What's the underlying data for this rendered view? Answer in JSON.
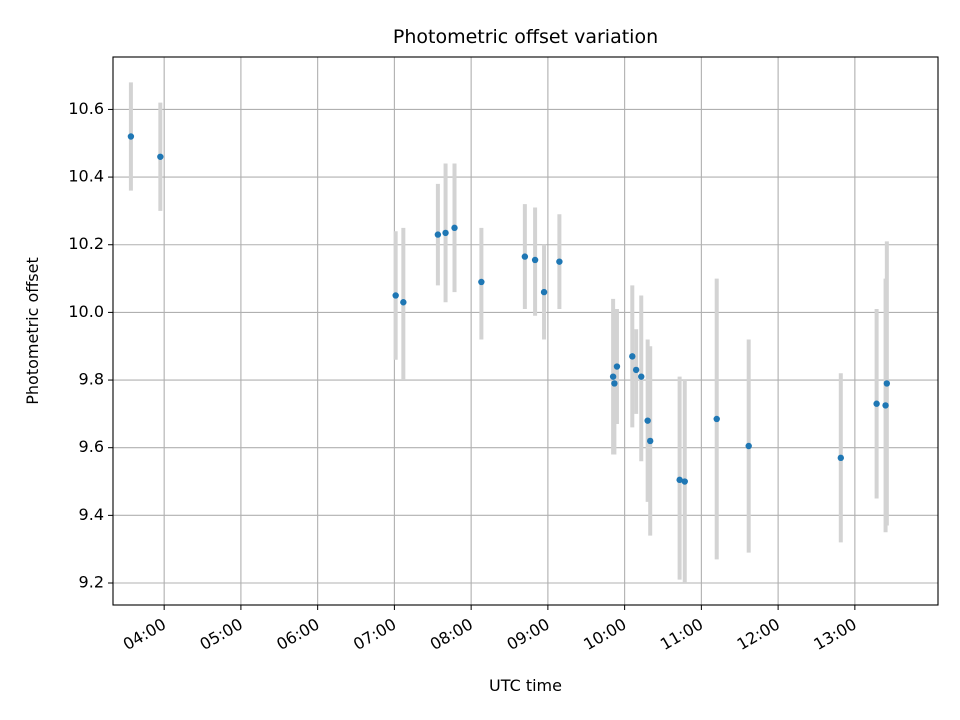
{
  "chart_data": {
    "type": "scatter",
    "title": "Photometric offset variation",
    "xlabel": "UTC time",
    "ylabel": "Photometric offset",
    "xlim": [
      "03:20",
      "14:05"
    ],
    "ylim": [
      9.135,
      10.755
    ],
    "x_ticks": [
      "04:00",
      "05:00",
      "06:00",
      "07:00",
      "08:00",
      "09:00",
      "10:00",
      "11:00",
      "12:00",
      "13:00"
    ],
    "y_ticks": [
      "9.2",
      "9.4",
      "9.6",
      "9.8",
      "10.0",
      "10.2",
      "10.4",
      "10.6"
    ],
    "grid": true,
    "point_color": "#1f77b4",
    "errorbar_color": "#d3d3d3",
    "points": [
      {
        "time": "03:34",
        "y": 10.52,
        "ylo": 10.36,
        "yhi": 10.68
      },
      {
        "time": "03:57",
        "y": 10.46,
        "ylo": 10.3,
        "yhi": 10.62
      },
      {
        "time": "07:01",
        "y": 10.05,
        "ylo": 9.86,
        "yhi": 10.24
      },
      {
        "time": "07:07",
        "y": 10.03,
        "ylo": 9.8,
        "yhi": 10.25
      },
      {
        "time": "07:34",
        "y": 10.23,
        "ylo": 10.08,
        "yhi": 10.38
      },
      {
        "time": "07:40",
        "y": 10.235,
        "ylo": 10.03,
        "yhi": 10.44
      },
      {
        "time": "07:47",
        "y": 10.25,
        "ylo": 10.06,
        "yhi": 10.44
      },
      {
        "time": "08:08",
        "y": 10.09,
        "ylo": 9.92,
        "yhi": 10.25
      },
      {
        "time": "08:42",
        "y": 10.165,
        "ylo": 10.01,
        "yhi": 10.32
      },
      {
        "time": "08:50",
        "y": 10.155,
        "ylo": 9.99,
        "yhi": 10.31
      },
      {
        "time": "08:57",
        "y": 10.06,
        "ylo": 9.92,
        "yhi": 10.2
      },
      {
        "time": "09:09",
        "y": 10.15,
        "ylo": 10.01,
        "yhi": 10.29
      },
      {
        "time": "09:51",
        "y": 9.81,
        "ylo": 9.58,
        "yhi": 10.04
      },
      {
        "time": "09:52",
        "y": 9.79,
        "ylo": 9.58,
        "yhi": 10.0
      },
      {
        "time": "09:54",
        "y": 9.84,
        "ylo": 9.67,
        "yhi": 10.01
      },
      {
        "time": "10:06",
        "y": 9.87,
        "ylo": 9.66,
        "yhi": 10.08
      },
      {
        "time": "10:09",
        "y": 9.83,
        "ylo": 9.7,
        "yhi": 9.95
      },
      {
        "time": "10:13",
        "y": 9.81,
        "ylo": 9.56,
        "yhi": 10.05
      },
      {
        "time": "10:18",
        "y": 9.68,
        "ylo": 9.44,
        "yhi": 9.92
      },
      {
        "time": "10:20",
        "y": 9.62,
        "ylo": 9.34,
        "yhi": 9.9
      },
      {
        "time": "10:43",
        "y": 9.505,
        "ylo": 9.21,
        "yhi": 9.81
      },
      {
        "time": "10:47",
        "y": 9.5,
        "ylo": 9.2,
        "yhi": 9.8
      },
      {
        "time": "11:12",
        "y": 9.685,
        "ylo": 9.27,
        "yhi": 10.1
      },
      {
        "time": "11:37",
        "y": 9.605,
        "ylo": 9.29,
        "yhi": 9.92
      },
      {
        "time": "12:49",
        "y": 9.57,
        "ylo": 9.32,
        "yhi": 9.82
      },
      {
        "time": "13:17",
        "y": 9.73,
        "ylo": 9.45,
        "yhi": 10.01
      },
      {
        "time": "13:24",
        "y": 9.725,
        "ylo": 9.35,
        "yhi": 10.1
      },
      {
        "time": "13:25",
        "y": 9.79,
        "ylo": 9.37,
        "yhi": 10.21
      }
    ]
  }
}
